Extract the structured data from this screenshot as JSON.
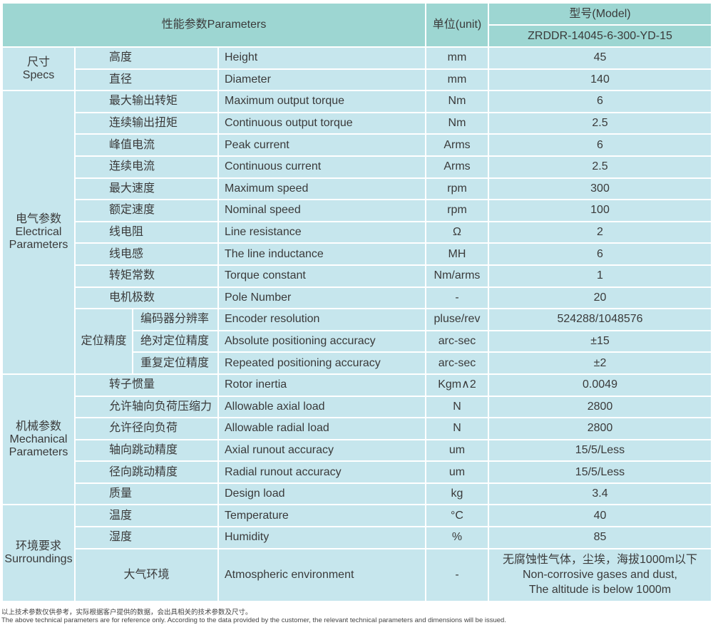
{
  "header": {
    "parameters": "性能参数Parameters",
    "unit": "单位(unit)",
    "model_label": "型号(Model)",
    "model_value": "ZRDDR-14045-6-300-YD-15"
  },
  "sections": [
    {
      "category": [
        "尺寸",
        "Specs"
      ],
      "rows": [
        {
          "cn": "高度",
          "en": "Height",
          "unit": "mm",
          "value": "45"
        },
        {
          "cn": "直径",
          "en": "Diameter",
          "unit": "mm",
          "value": "140"
        }
      ]
    },
    {
      "category": [
        "电气参数",
        "Electrical",
        "Parameters"
      ],
      "rows": [
        {
          "cn": "最大输出转矩",
          "en": "Maximum output torque",
          "unit": "Nm",
          "value": "6"
        },
        {
          "cn": "连续输出扭矩",
          "en": "Continuous output torque",
          "unit": "Nm",
          "value": "2.5"
        },
        {
          "cn": "峰值电流",
          "en": "Peak current",
          "unit": "Arms",
          "value": "6"
        },
        {
          "cn": "连续电流",
          "en": "Continuous current",
          "unit": "Arms",
          "value": "2.5"
        },
        {
          "cn": "最大速度",
          "en": "Maximum speed",
          "unit": "rpm",
          "value": "300"
        },
        {
          "cn": "额定速度",
          "en": "Nominal speed",
          "unit": "rpm",
          "value": "100"
        },
        {
          "cn": "线电阻",
          "en": "Line resistance",
          "unit": "Ω",
          "value": "2"
        },
        {
          "cn": "线电感",
          "en": "The line inductance",
          "unit": "MH",
          "value": "6"
        },
        {
          "cn": "转矩常数",
          "en": "Torque constant",
          "unit": "Nm/arms",
          "value": "1"
        },
        {
          "cn": "电机极数",
          "en": "Pole Number",
          "unit": "-",
          "value": "20"
        },
        {
          "group": "定位精度",
          "cn": "编码器分辨率",
          "en": "Encoder resolution",
          "unit": "pluse/rev",
          "value": "524288/1048576"
        },
        {
          "group": "定位精度",
          "cn": "绝对定位精度",
          "en": "Absolute positioning accuracy",
          "unit": "arc-sec",
          "value": "±15"
        },
        {
          "group": "定位精度",
          "cn": "重复定位精度",
          "en": "Repeated positioning accuracy",
          "unit": "arc-sec",
          "value": "±2"
        }
      ]
    },
    {
      "category": [
        "机械参数",
        "Mechanical",
        "Parameters"
      ],
      "rows": [
        {
          "cn": "转子惯量",
          "en": "Rotor inertia",
          "unit": "Kgm∧2",
          "value": "0.0049"
        },
        {
          "cn": "允许轴向负荷压缩力",
          "en": "Allowable axial load",
          "unit": "N",
          "value": "2800"
        },
        {
          "cn": "允许径向负荷",
          "en": "Allowable radial load",
          "unit": "N",
          "value": "2800"
        },
        {
          "cn": "轴向跳动精度",
          "en": "Axial runout accuracy",
          "unit": "um",
          "value": "15/5/Less"
        },
        {
          "cn": "径向跳动精度",
          "en": "Radial runout accuracy",
          "unit": "um",
          "value": "15/5/Less"
        },
        {
          "cn": "质量",
          "en": "Design load",
          "unit": "kg",
          "value": "3.4"
        }
      ]
    },
    {
      "category": [
        "环境要求",
        "Surroundings"
      ],
      "rows": [
        {
          "cn": "温度",
          "en": "Temperature",
          "unit": "°C",
          "value": "40"
        },
        {
          "cn": "湿度",
          "en": "Humidity",
          "unit": "%",
          "value": "85"
        },
        {
          "cn": "大气环境",
          "en": "Atmospheric environment",
          "unit": "-",
          "value": [
            "无腐蚀性气体，尘埃，海拔1000m以下",
            "Non-corrosive gases and dust,",
            "The altitude is below 1000m"
          ],
          "tall": true
        }
      ]
    }
  ],
  "footnote": {
    "cn": "以上技术参数仅供参考，实际根据客户提供的数据，会出具相关的技术参数及尺寸。",
    "en": "The above technical parameters are for reference only. According to the data provided by the customer, the relevant technical parameters and dimensions will be issued."
  },
  "colors": {
    "header_bg": "#9dd6d2",
    "cell_bg": "#c6e6ed"
  }
}
